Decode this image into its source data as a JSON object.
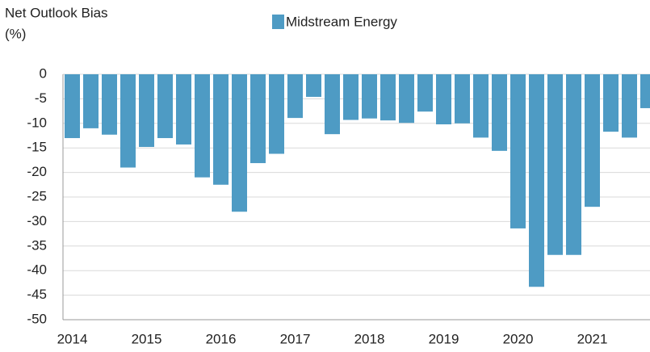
{
  "chart_data": {
    "type": "bar",
    "y_label": [
      "Net Outlook Bias",
      "(%)"
    ],
    "categories": [
      "2014",
      null,
      null,
      null,
      "2015",
      null,
      null,
      null,
      "2016",
      null,
      null,
      null,
      "2017",
      null,
      null,
      null,
      "2018",
      null,
      null,
      null,
      "2019",
      null,
      null,
      null,
      "2020",
      null,
      null,
      null,
      "2021",
      null,
      null,
      null
    ],
    "series": [
      {
        "name": "Midstream Energy",
        "color": "#4e9bc4",
        "values": [
          -13,
          -11,
          -12.3,
          -19,
          -14.8,
          -13,
          -14.3,
          -21,
          -22.5,
          -28,
          -18.1,
          -16.2,
          -8.9,
          -4.6,
          -12.2,
          -9.3,
          -9,
          -9.4,
          -9.9,
          -7.6,
          -10.2,
          -10,
          -12.9,
          -15.6,
          -31.4,
          -43.3,
          -36.8,
          -36.8,
          -27,
          -11.7,
          -12.9,
          -6.9
        ]
      }
    ],
    "ylim": [
      -50,
      0
    ],
    "yticks": [
      0,
      -5,
      -10,
      -15,
      -20,
      -25,
      -30,
      -35,
      -40,
      -45,
      -50
    ],
    "grid": true,
    "legend": "top"
  }
}
